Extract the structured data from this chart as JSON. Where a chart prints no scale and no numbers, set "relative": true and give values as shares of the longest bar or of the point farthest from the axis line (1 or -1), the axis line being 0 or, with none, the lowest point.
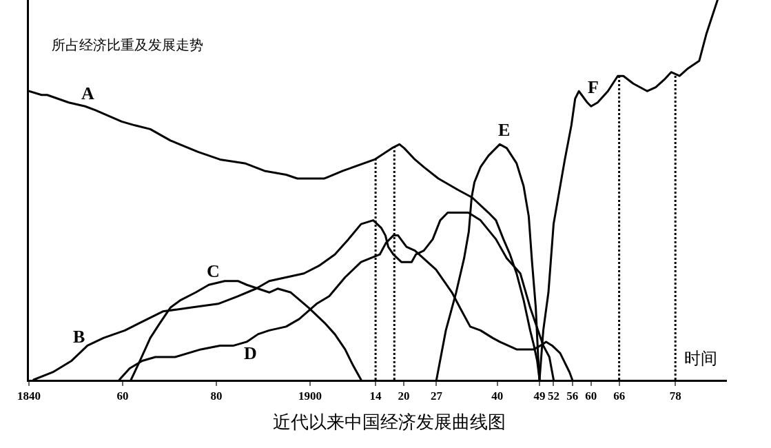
{
  "chart_data": {
    "type": "line",
    "title": "近代以来中国经济发展曲线图",
    "xlabel": "时间",
    "ylabel": "所占经济比重及发展走势",
    "relative": true,
    "xlim": [
      1840,
      1989
    ],
    "xticks": [
      1840,
      {
        "value": 1860,
        "label": "60"
      },
      {
        "value": 1880,
        "label": "80"
      },
      1900,
      {
        "value": 1914,
        "label": "14"
      },
      {
        "value": 1920,
        "label": "20"
      },
      {
        "value": 1927,
        "label": "27"
      },
      {
        "value": 1940,
        "label": "40"
      },
      {
        "value": 1949,
        "label": "49"
      },
      {
        "value": 1952,
        "label": "52"
      },
      {
        "value": 1956,
        "label": "56"
      },
      {
        "value": 1960,
        "label": "60"
      },
      {
        "value": 1966,
        "label": "66"
      },
      {
        "value": 1978,
        "label": "78"
      }
    ],
    "tick_labels": "x",
    "grid": false,
    "legend": false,
    "marker": "none",
    "line_style": "solid",
    "series": [
      {
        "name": "A",
        "color": "#000000",
        "x": [
          1840,
          1842.7,
          1843.9,
          1848.5,
          1852.0,
          1854.2,
          1859.8,
          1862.6,
          1865.9,
          1870.2,
          1876.1,
          1880.8,
          1886.1,
          1890.3,
          1894.9,
          1897.3,
          1900.2,
          1903.1,
          1907.0,
          1913.8,
          1917.5,
          1919.1,
          1920.1,
          1922.4,
          1924.3,
          1927.4,
          1931.6,
          1934.6,
          1938.1,
          1939.7,
          1941.3,
          1942.7,
          1944.1,
          1945.6,
          1947.0,
          1947.8,
          1948.5,
          1949
        ],
        "values": [
          0.76,
          0.75,
          0.75,
          0.73,
          0.72,
          0.71,
          0.68,
          0.67,
          0.66,
          0.63,
          0.6,
          0.58,
          0.57,
          0.55,
          0.54,
          0.53,
          0.53,
          0.53,
          0.55,
          0.58,
          0.61,
          0.62,
          0.61,
          0.58,
          0.56,
          0.53,
          0.5,
          0.48,
          0.44,
          0.42,
          0.37,
          0.33,
          0.28,
          0.21,
          0.13,
          0.09,
          0.05,
          0
        ]
      },
      {
        "name": "B",
        "color": "#000000",
        "x": [
          1841,
          1845.1,
          1849.1,
          1852.5,
          1855.9,
          1860.5,
          1863.7,
          1868.6,
          1874.5,
          1880.4,
          1884.6,
          1888.5,
          1891.3,
          1898.7,
          1901.9,
          1905.3,
          1908.2,
          1910.9,
          1913.5,
          1915.2,
          1916.1,
          1916.7,
          1917.8,
          1919.5,
          1921.7,
          1922.6,
          1924.3,
          1926.2,
          1927.8,
          1929.4,
          1933.8,
          1936.4,
          1939.7,
          1942.0,
          1944.9,
          1947.0,
          1949.8,
          1951.1,
          1952
        ],
        "values": [
          0,
          0.02,
          0.05,
          0.09,
          0.11,
          0.13,
          0.15,
          0.18,
          0.19,
          0.2,
          0.22,
          0.24,
          0.26,
          0.28,
          0.3,
          0.33,
          0.37,
          0.41,
          0.42,
          0.4,
          0.38,
          0.35,
          0.33,
          0.31,
          0.31,
          0.33,
          0.34,
          0.37,
          0.42,
          0.44,
          0.44,
          0.42,
          0.37,
          0.32,
          0.28,
          0.19,
          0.09,
          0.06,
          0
        ]
      },
      {
        "name": "C",
        "color": "#000000",
        "x": [
          1861.8,
          1863.7,
          1865.9,
          1868.0,
          1870.2,
          1872.4,
          1875.6,
          1878.4,
          1881.8,
          1884.6,
          1886.5,
          1888.9,
          1891.3,
          1893.1,
          1895.9,
          1899.7,
          1903.1,
          1905.3,
          1907.5,
          1909.1,
          1910.9
        ],
        "values": [
          0,
          0.05,
          0.11,
          0.15,
          0.19,
          0.21,
          0.23,
          0.25,
          0.26,
          0.26,
          0.25,
          0.24,
          0.23,
          0.24,
          0.23,
          0.19,
          0.15,
          0.12,
          0.08,
          0.04,
          0
        ]
      },
      {
        "name": "D",
        "color": "#000000",
        "x": [
          1859.3,
          1861.5,
          1864.2,
          1867.0,
          1871.2,
          1876.7,
          1880.8,
          1883.7,
          1886.5,
          1888.9,
          1891.3,
          1894.9,
          1897.7,
          1901.4,
          1904.1,
          1907.5,
          1910.9,
          1914.9,
          1916.2,
          1917.8,
          1918.8,
          1920.6,
          1922.4,
          1926.9,
          1930.3,
          1932.0,
          1934.2,
          1936.4,
          1939.0,
          1940.5,
          1944.1,
          1947.8,
          1949.2,
          1950.4,
          1951.7,
          1953.4,
          1955.4,
          1956
        ],
        "values": [
          0,
          0.03,
          0.05,
          0.06,
          0.06,
          0.08,
          0.09,
          0.09,
          0.1,
          0.12,
          0.13,
          0.14,
          0.16,
          0.2,
          0.22,
          0.27,
          0.31,
          0.33,
          0.36,
          0.38,
          0.38,
          0.35,
          0.34,
          0.29,
          0.23,
          0.19,
          0.14,
          0.13,
          0.11,
          0.1,
          0.08,
          0.08,
          0.09,
          0.1,
          0.09,
          0.07,
          0.02,
          0
        ]
      },
      {
        "name": "E",
        "color": "#000000",
        "x": [
          1927,
          1929.0,
          1931.2,
          1932.9,
          1933.9,
          1934.5,
          1935.1,
          1936.4,
          1938.1,
          1940.5,
          1942.0,
          1944.1,
          1945.6,
          1946.7,
          1947.4,
          1948.2,
          1948.7,
          1949
        ],
        "values": [
          0,
          0.13,
          0.23,
          0.32,
          0.39,
          0.48,
          0.52,
          0.56,
          0.59,
          0.62,
          0.61,
          0.57,
          0.51,
          0.43,
          0.31,
          0.19,
          0.06,
          0
        ]
      },
      {
        "name": "F",
        "color": "#000000",
        "x": [
          1949,
          1949.8,
          1950.9,
          1952.0,
          1954.4,
          1955.8,
          1956.6,
          1957.4,
          1958.0,
          1959.2,
          1960.0,
          1961.4,
          1963.6,
          1965.7,
          1966.9,
          1969.0,
          1972.0,
          1973.8,
          1975.6,
          1977.1,
          1978.9,
          1980.7,
          1983.1,
          1984.6,
          1987.0
        ],
        "values": [
          0,
          0.13,
          0.23,
          0.41,
          0.58,
          0.67,
          0.74,
          0.76,
          0.75,
          0.73,
          0.72,
          0.73,
          0.76,
          0.8,
          0.8,
          0.78,
          0.76,
          0.77,
          0.79,
          0.81,
          0.8,
          0.82,
          0.84,
          0.91,
          1
        ]
      }
    ],
    "ref_lines": [
      {
        "axis": "x",
        "value": 1914,
        "color": "#000000",
        "line_style": "dotted"
      },
      {
        "axis": "x",
        "value": 1918,
        "color": "#000000",
        "line_style": "dotted"
      },
      {
        "axis": "x",
        "value": 1966,
        "color": "#000000",
        "line_style": "dotted"
      },
      {
        "axis": "x",
        "value": 1978,
        "color": "#000000",
        "line_style": "dotted"
      }
    ]
  }
}
